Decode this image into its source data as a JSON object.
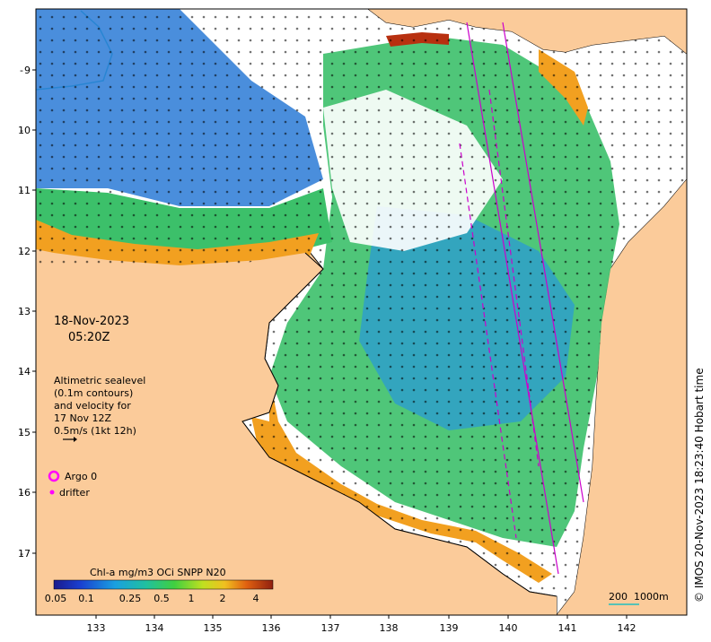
{
  "map": {
    "date": "18-Nov-2023",
    "time": "05:20Z",
    "altimetry_note": [
      "Altimetric sealevel",
      "(0.1m contours)",
      "and velocity for",
      "17 Nov 12Z",
      "0.5m/s (1kt 12h)"
    ],
    "legend": {
      "argo_label": "Argo 0",
      "drifter_label": "drifter",
      "argo_color": "#ff00ff",
      "drifter_color": "#ff00ff"
    },
    "colorbar": {
      "title": "Chl-a mg/m3 OCi SNPP N20",
      "ticks": [
        "0.05",
        "0.1",
        "0.25",
        "0.5",
        "1",
        "2",
        "4"
      ]
    },
    "scale_bar": {
      "label_a": "200",
      "label_b": "1000m"
    },
    "credit": "© IMOS 20-Nov-2023 18:23:40 Hobart time",
    "x_ticks": [
      "133",
      "134",
      "135",
      "136",
      "137",
      "138",
      "139",
      "140",
      "141",
      "142"
    ],
    "y_ticks": [
      "9",
      "10",
      "11",
      "12",
      "13",
      "14",
      "15",
      "16",
      "17"
    ],
    "colors": {
      "land": "#fbcb9a",
      "cloud": "#ffffff",
      "low_chl": "#2a7ad6",
      "mid_chl": "#3cc06a",
      "high_chl": "#f2a020",
      "very_high_chl": "#b83010"
    }
  }
}
